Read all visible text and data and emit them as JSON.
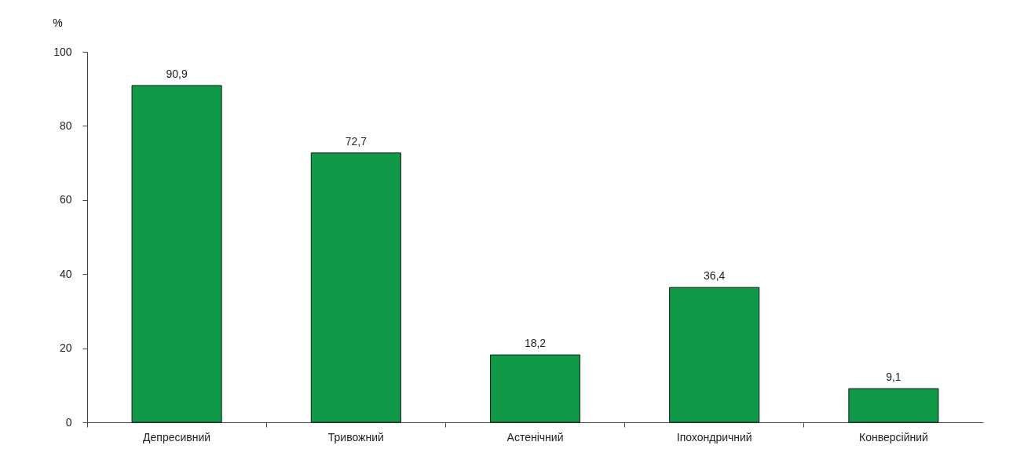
{
  "chart_data": {
    "type": "bar",
    "ylabel": "%",
    "categories": [
      "Депресивний",
      "Тривожний",
      "Астенічний",
      "Іпохондричний",
      "Конверсійний"
    ],
    "values": [
      90.9,
      72.7,
      18.2,
      36.4,
      9.1
    ],
    "value_labels": [
      "90,9",
      "72,7",
      "18,2",
      "36,4",
      "9,1"
    ],
    "color": "#109a48",
    "ylim": [
      0,
      100
    ],
    "yticks": [
      0,
      20,
      40,
      60,
      80,
      100
    ],
    "grid": false
  }
}
